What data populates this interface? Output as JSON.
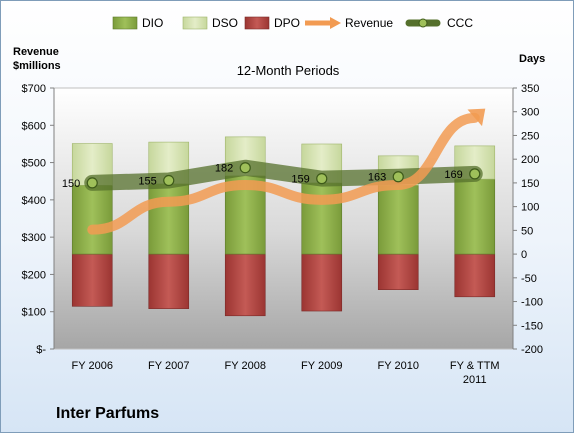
{
  "company": "Inter Parfums",
  "chart_data": {
    "type": "bar",
    "title": "12-Month Periods",
    "ylabel_left": [
      "Revenue",
      "$millions"
    ],
    "ylabel_right": "Days",
    "categories": [
      "FY 2006",
      "FY 2007",
      "FY 2008",
      "FY 2009",
      "FY 2010",
      "FY & TTM 2011"
    ],
    "left_ticks": [
      "$-",
      "$100",
      "$200",
      "$300",
      "$400",
      "$500",
      "$600",
      "$700"
    ],
    "right_ticks": [
      "-200",
      "-150",
      "-100",
      "-50",
      "0",
      "50",
      "100",
      "150",
      "200",
      "250",
      "300",
      "350"
    ],
    "y_left_lim": [
      0,
      700
    ],
    "y_right_lim": [
      -200,
      350
    ],
    "legend_position": "top",
    "series": [
      {
        "name": "DIO",
        "axis": "right",
        "color": "#8fb04a",
        "values": [
          145,
          148,
          165,
          150,
          145,
          158
        ]
      },
      {
        "name": "DSO",
        "axis": "right",
        "color": "#d7e4b0",
        "values": [
          88,
          88,
          82,
          82,
          62,
          70
        ]
      },
      {
        "name": "DPO",
        "axis": "right",
        "color": "#b94a48",
        "values": [
          -110,
          -115,
          -130,
          -120,
          -75,
          -90
        ]
      },
      {
        "name": "Revenue",
        "axis": "left",
        "color": "#f09a4e",
        "values": [
          320,
          395,
          440,
          400,
          440,
          620
        ]
      },
      {
        "name": "CCC",
        "axis": "right",
        "color": "#5a7a2a",
        "values": [
          150,
          155,
          182,
          159,
          163,
          169
        ]
      }
    ],
    "data_labels": [
      "150",
      "155",
      "182",
      "159",
      "163",
      "169"
    ]
  }
}
